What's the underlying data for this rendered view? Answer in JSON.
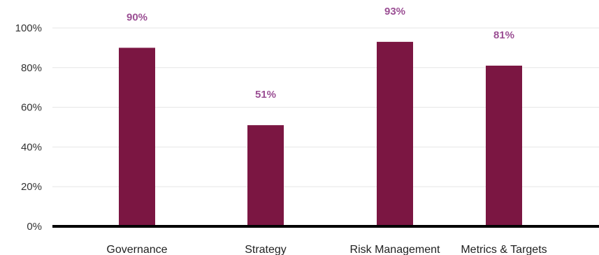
{
  "chart_data": {
    "type": "bar",
    "title": "",
    "xlabel": "",
    "ylabel": "",
    "categories": [
      "Governance",
      "Strategy",
      "Risk Management",
      "Metrics & Targets"
    ],
    "values": [
      90,
      51,
      93,
      81
    ],
    "value_labels": [
      "90%",
      "51%",
      "93%",
      "81%"
    ],
    "ylim": [
      0,
      100
    ],
    "yticks": [
      0,
      20,
      40,
      60,
      80,
      100
    ],
    "ytick_labels": [
      "0%",
      "20%",
      "40%",
      "60%",
      "80%",
      "100%"
    ],
    "grid": true,
    "legend": "none",
    "colors": {
      "bar": "#7b1642",
      "data_label": "#9b4f94",
      "grid": "#e6e6e6",
      "baseline": "#000000"
    }
  }
}
